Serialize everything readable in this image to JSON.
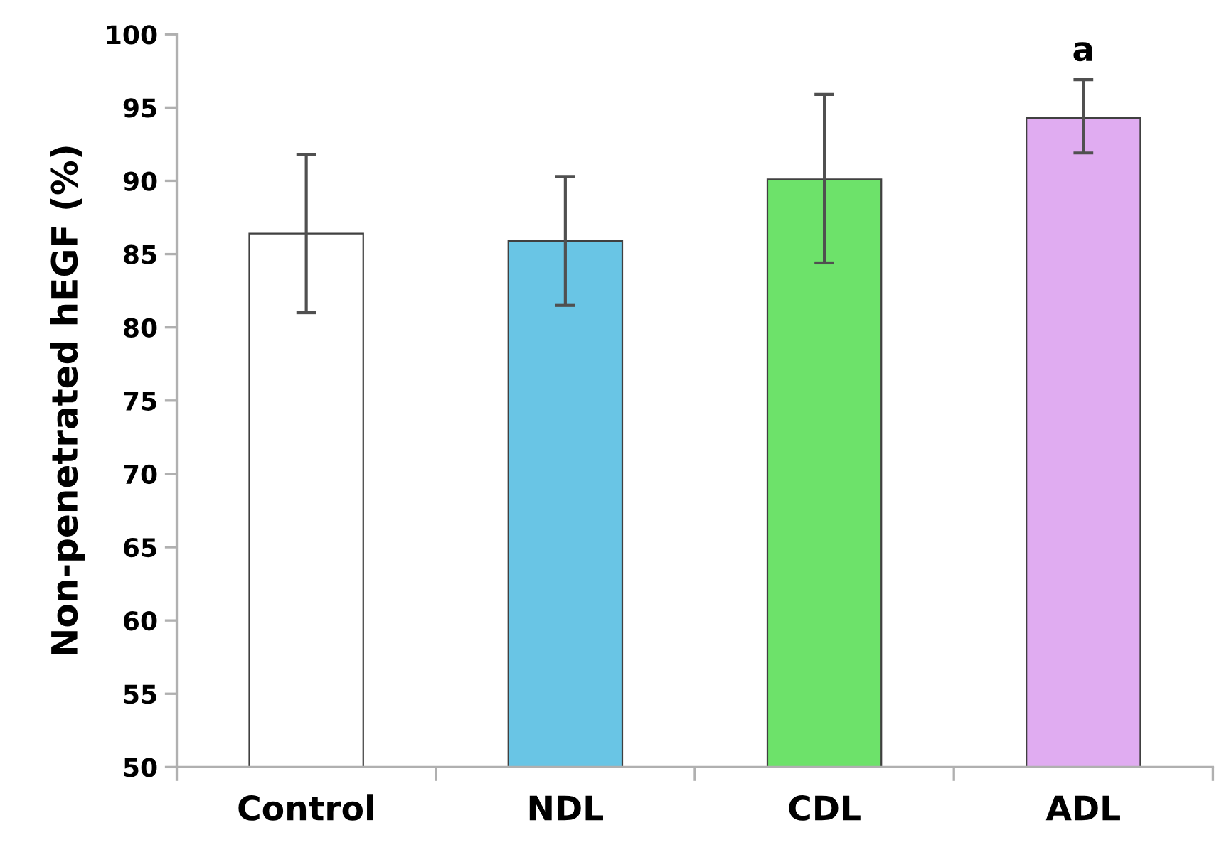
{
  "chart_data": {
    "type": "bar",
    "ylabel": "Non-penetrated hEGF (%)",
    "categories": [
      "Control",
      "NDL",
      "CDL",
      "ADL"
    ],
    "values": [
      86.4,
      85.9,
      90.1,
      94.3
    ],
    "colors": [
      "#ffffff",
      "#69c5e5",
      "#6de26a",
      "#e0acf1"
    ],
    "errors": [
      [
        81.0,
        91.8
      ],
      [
        81.5,
        90.3
      ],
      [
        84.4,
        95.9
      ],
      [
        91.9,
        96.9
      ]
    ],
    "ylim": [
      50,
      100
    ],
    "yticks": [
      50,
      55,
      60,
      65,
      70,
      75,
      80,
      85,
      90,
      95,
      100
    ],
    "annotations": [
      {
        "text": "a",
        "x": "ADL",
        "y": 96.9
      }
    ],
    "grid": false,
    "legend": false
  }
}
